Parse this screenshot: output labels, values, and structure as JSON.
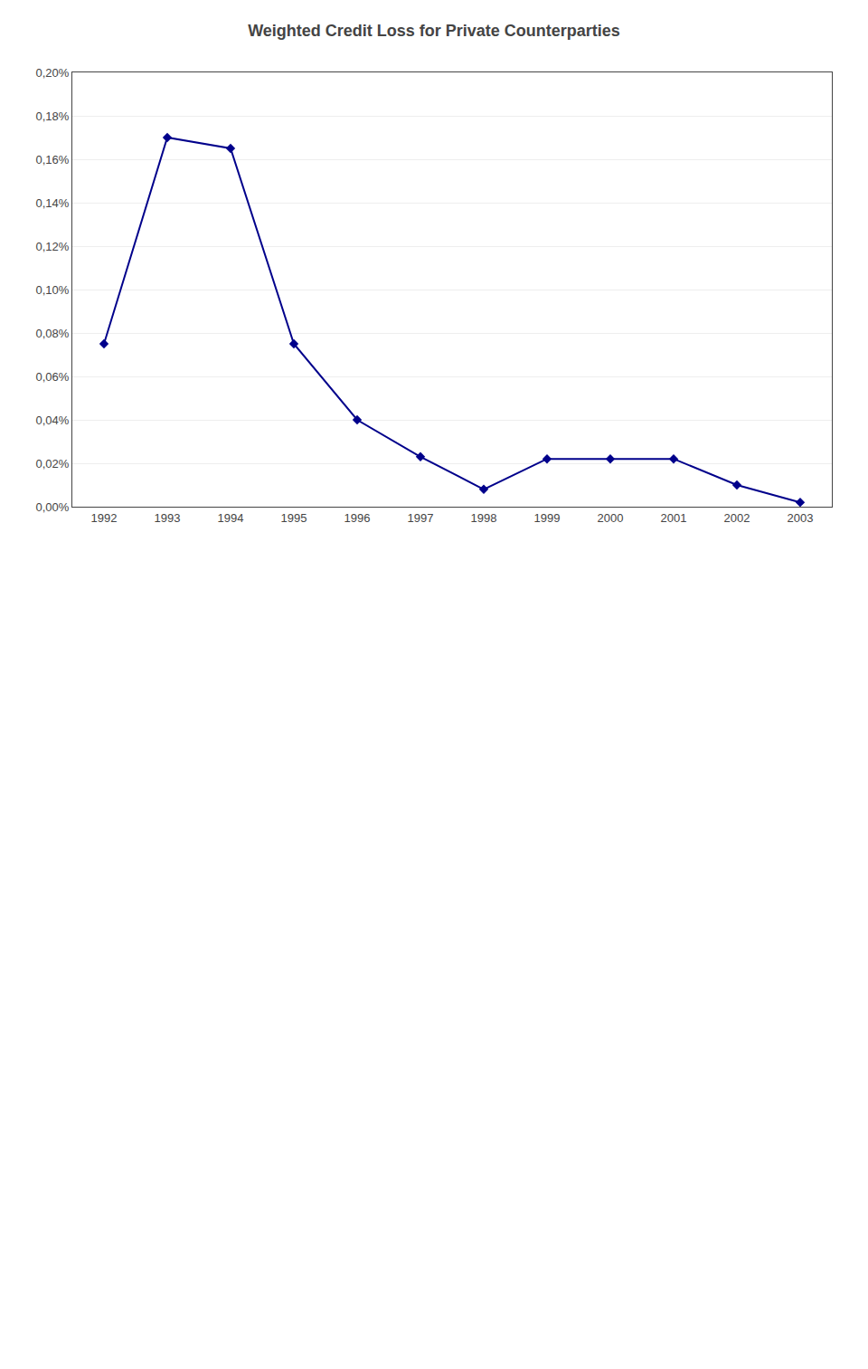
{
  "chart_data": {
    "type": "line",
    "title": "Weighted Credit Loss for Private Counterparties",
    "x": [
      1992,
      1993,
      1994,
      1995,
      1996,
      1997,
      1998,
      1999,
      2000,
      2001,
      2002,
      2003
    ],
    "values": [
      0.00075,
      0.0017,
      0.00165,
      0.00075,
      0.0004,
      0.00023,
      8e-05,
      0.00022,
      0.00022,
      0.00022,
      0.0001,
      2e-05
    ],
    "color": "#00008B",
    "marker": "diamond",
    "line_style": "solid",
    "xlim": [
      1991.5,
      2003.5
    ],
    "xticks": [
      1992,
      1993,
      1994,
      1995,
      1996,
      1997,
      1998,
      1999,
      2000,
      2001,
      2002,
      2003
    ],
    "ylim": [
      0.0,
      0.002
    ],
    "yticks": [
      {
        "value": 0.0,
        "label": "0,00%"
      },
      {
        "value": 0.0002,
        "label": "0,02%"
      },
      {
        "value": 0.0004,
        "label": "0,04%"
      },
      {
        "value": 0.0006,
        "label": "0,06%"
      },
      {
        "value": 0.0008,
        "label": "0,08%"
      },
      {
        "value": 0.001,
        "label": "0,10%"
      },
      {
        "value": 0.0012,
        "label": "0,12%"
      },
      {
        "value": 0.0014,
        "label": "0,14%"
      },
      {
        "value": 0.0016,
        "label": "0,16%"
      },
      {
        "value": 0.0018,
        "label": "0,18%"
      },
      {
        "value": 0.002,
        "label": "0,20%"
      }
    ],
    "grid": "y"
  }
}
